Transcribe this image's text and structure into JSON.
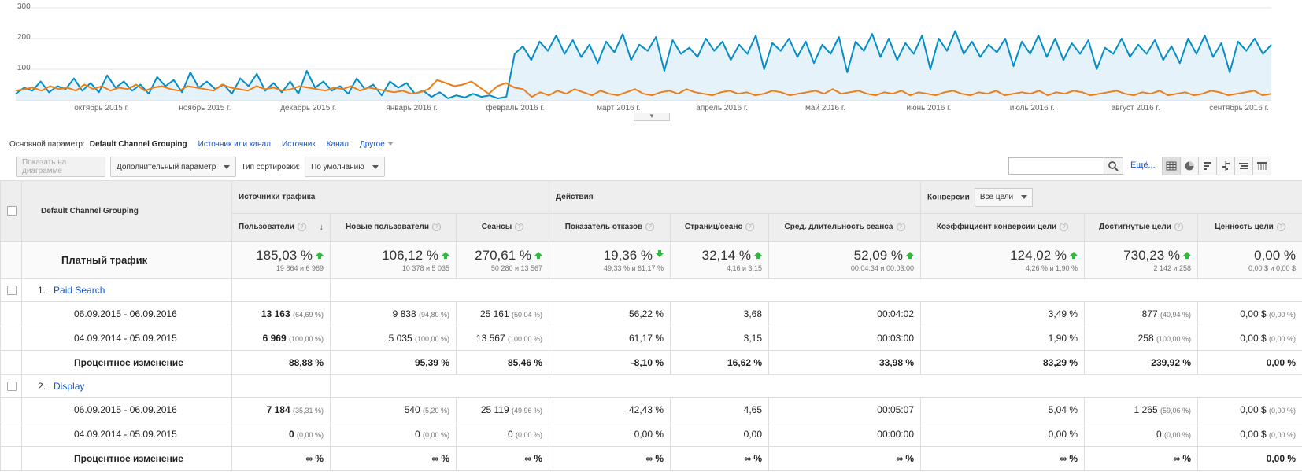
{
  "chart_data": {
    "type": "line",
    "y_ticks": [
      "300",
      "200",
      "100"
    ],
    "ylim": [
      0,
      300
    ],
    "x_ticks": [
      "октябрь 2015 г.",
      "ноябрь 2015 г.",
      "декабрь 2015 г.",
      "январь 2016 г.",
      "февраль 2016 г.",
      "март 2016 г.",
      "апрель 2016 г.",
      "май 2016 г.",
      "июнь 2016 г.",
      "июль 2016 г.",
      "август 2016 г.",
      "сентябрь 2016 г."
    ],
    "colors": {
      "blue": "#058dc7",
      "orange": "#ed7e17",
      "fill": "#e5f2fa"
    },
    "grid": true,
    "series": [
      {
        "color": "#058dc7",
        "values": [
          20,
          40,
          30,
          60,
          25,
          45,
          35,
          70,
          30,
          55,
          25,
          80,
          40,
          60,
          30,
          50,
          20,
          75,
          45,
          65,
          25,
          90,
          40,
          60,
          35,
          50,
          20,
          70,
          45,
          85,
          30,
          55,
          25,
          60,
          20,
          95,
          40,
          60,
          30,
          45,
          20,
          70,
          35,
          50,
          15,
          60,
          40,
          55,
          20,
          30,
          10,
          25,
          5,
          15,
          8,
          20,
          10,
          15,
          5,
          10,
          150,
          175,
          130,
          190,
          160,
          210,
          150,
          195,
          140,
          180,
          120,
          190,
          155,
          215,
          130,
          180,
          160,
          205,
          95,
          195,
          150,
          170,
          140,
          200,
          160,
          190,
          130,
          180,
          150,
          210,
          100,
          185,
          160,
          200,
          140,
          190,
          120,
          180,
          150,
          205,
          90,
          190,
          160,
          215,
          140,
          200,
          130,
          185,
          150,
          210,
          100,
          200,
          160,
          225,
          150,
          190,
          140,
          180,
          155,
          200,
          110,
          190,
          150,
          210,
          140,
          200,
          130,
          185,
          150,
          195,
          100,
          170,
          150,
          200,
          140,
          180,
          150,
          195,
          130,
          175,
          120,
          200,
          150,
          210,
          140,
          185,
          90,
          190,
          160,
          200,
          150,
          180
        ]
      },
      {
        "color": "#ed7e17",
        "values": [
          30,
          35,
          40,
          30,
          45,
          35,
          40,
          30,
          50,
          35,
          45,
          30,
          40,
          35,
          50,
          30,
          40,
          45,
          35,
          30,
          45,
          40,
          35,
          30,
          50,
          40,
          35,
          30,
          45,
          35,
          40,
          30,
          35,
          45,
          40,
          35,
          30,
          40,
          35,
          45,
          30,
          40,
          35,
          30,
          25,
          30,
          20,
          25,
          35,
          65,
          55,
          45,
          50,
          60,
          40,
          20,
          45,
          55,
          40,
          35,
          10,
          25,
          15,
          30,
          20,
          35,
          25,
          15,
          30,
          20,
          15,
          25,
          35,
          20,
          15,
          25,
          30,
          20,
          35,
          25,
          20,
          15,
          25,
          30,
          20,
          25,
          15,
          20,
          30,
          25,
          15,
          20,
          25,
          30,
          20,
          35,
          20,
          25,
          30,
          20,
          15,
          25,
          20,
          30,
          15,
          25,
          20,
          15,
          25,
          30,
          20,
          15,
          25,
          20,
          30,
          15,
          20,
          25,
          20,
          30,
          15,
          25,
          20,
          30,
          25,
          15,
          20,
          25,
          30,
          20,
          15,
          25,
          20,
          30,
          15,
          20,
          25,
          15,
          20,
          30,
          25,
          15,
          20,
          25,
          30,
          15,
          20
        ]
      }
    ]
  },
  "dimensions": {
    "label": "Основной параметр:",
    "current": "Default Channel Grouping",
    "links": [
      "Источник или канал",
      "Источник",
      "Канал"
    ],
    "other": "Другое"
  },
  "toolbar": {
    "plot_rows": "Показать на диаграмме",
    "secondary_dim": "Дополнительный параметр",
    "sort_label": "Тип сортировки:",
    "sort_value": "По умолчанию",
    "more": "Ещё..."
  },
  "table": {
    "dim_header": "Default Channel Grouping",
    "group_traffic": "Источники трафика",
    "group_actions": "Действия",
    "group_conv": "Конверсии",
    "goal_select": "Все цели",
    "columns": [
      "Пользователи",
      "Новые пользователи",
      "Сеансы",
      "Показатель отказов",
      "Страниц/сеанс",
      "Сред. длительность сеанса",
      "Коэффициент конверсии цели",
      "Достигнутые цели",
      "Ценность цели"
    ],
    "total": {
      "label": "Платный трафик",
      "cells": [
        {
          "big": "185,03 %",
          "sub": "19 864 и 6 969"
        },
        {
          "big": "106,12 %",
          "sub": "10 378 и 5 035"
        },
        {
          "big": "270,61 %",
          "sub": "50 280 и 13 567"
        },
        {
          "big": "19,36 %",
          "sub": "49,33 % и 61,17 %"
        },
        {
          "big": "32,14 %",
          "sub": "4,16 и 3,15"
        },
        {
          "big": "52,09 %",
          "sub": "00:04:34 и 00:03:00"
        },
        {
          "big": "124,02 %",
          "sub": "4,26 % и 1,90 %"
        },
        {
          "big": "730,23 %",
          "sub": "2 142 и 258"
        },
        {
          "big": "0,00 %",
          "sub": "0,00 $ и 0,00 $"
        }
      ]
    },
    "groups": [
      {
        "num": "1.",
        "name": "Paid Search",
        "rows": [
          {
            "label": "06.09.2015 - 06.09.2016",
            "cells": [
              [
                "13 163",
                "(64,69 %)"
              ],
              [
                "9 838",
                "(94,80 %)"
              ],
              [
                "25 161",
                "(50,04 %)"
              ],
              [
                "56,22 %",
                ""
              ],
              [
                "3,68",
                ""
              ],
              [
                "00:04:02",
                ""
              ],
              [
                "3,49 %",
                ""
              ],
              [
                "877",
                "(40,94 %)"
              ],
              [
                "0,00 $",
                "(0,00 %)"
              ]
            ]
          },
          {
            "label": "04.09.2014 - 05.09.2015",
            "cells": [
              [
                "6 969",
                "(100,00 %)"
              ],
              [
                "5 035",
                "(100,00 %)"
              ],
              [
                "13 567",
                "(100,00 %)"
              ],
              [
                "61,17 %",
                ""
              ],
              [
                "3,15",
                ""
              ],
              [
                "00:03:00",
                ""
              ],
              [
                "1,90 %",
                ""
              ],
              [
                "258",
                "(100,00 %)"
              ],
              [
                "0,00 $",
                "(0,00 %)"
              ]
            ]
          },
          {
            "label": "Процентное изменение",
            "cells": [
              [
                "88,88 %",
                ""
              ],
              [
                "95,39 %",
                ""
              ],
              [
                "85,46 %",
                ""
              ],
              [
                "-8,10 %",
                ""
              ],
              [
                "16,62 %",
                ""
              ],
              [
                "33,98 %",
                ""
              ],
              [
                "83,29 %",
                ""
              ],
              [
                "239,92 %",
                ""
              ],
              [
                "0,00 %",
                ""
              ]
            ]
          }
        ]
      },
      {
        "num": "2.",
        "name": "Display",
        "rows": [
          {
            "label": "06.09.2015 - 06.09.2016",
            "cells": [
              [
                "7 184",
                "(35,31 %)"
              ],
              [
                "540",
                "(5,20 %)"
              ],
              [
                "25 119",
                "(49,96 %)"
              ],
              [
                "42,43 %",
                ""
              ],
              [
                "4,65",
                ""
              ],
              [
                "00:05:07",
                ""
              ],
              [
                "5,04 %",
                ""
              ],
              [
                "1 265",
                "(59,06 %)"
              ],
              [
                "0,00 $",
                "(0,00 %)"
              ]
            ]
          },
          {
            "label": "04.09.2014 - 05.09.2015",
            "cells": [
              [
                "0",
                "(0,00 %)"
              ],
              [
                "0",
                "(0,00 %)"
              ],
              [
                "0",
                "(0,00 %)"
              ],
              [
                "0,00 %",
                ""
              ],
              [
                "0,00",
                ""
              ],
              [
                "00:00:00",
                ""
              ],
              [
                "0,00 %",
                ""
              ],
              [
                "0",
                "(0,00 %)"
              ],
              [
                "0,00 $",
                "(0,00 %)"
              ]
            ]
          },
          {
            "label": "Процентное изменение",
            "cells": [
              [
                "∞ %",
                ""
              ],
              [
                "∞ %",
                ""
              ],
              [
                "∞ %",
                ""
              ],
              [
                "∞ %",
                ""
              ],
              [
                "∞ %",
                ""
              ],
              [
                "∞ %",
                ""
              ],
              [
                "∞ %",
                ""
              ],
              [
                "∞ %",
                ""
              ],
              [
                "0,00 %",
                ""
              ]
            ]
          }
        ]
      }
    ]
  }
}
